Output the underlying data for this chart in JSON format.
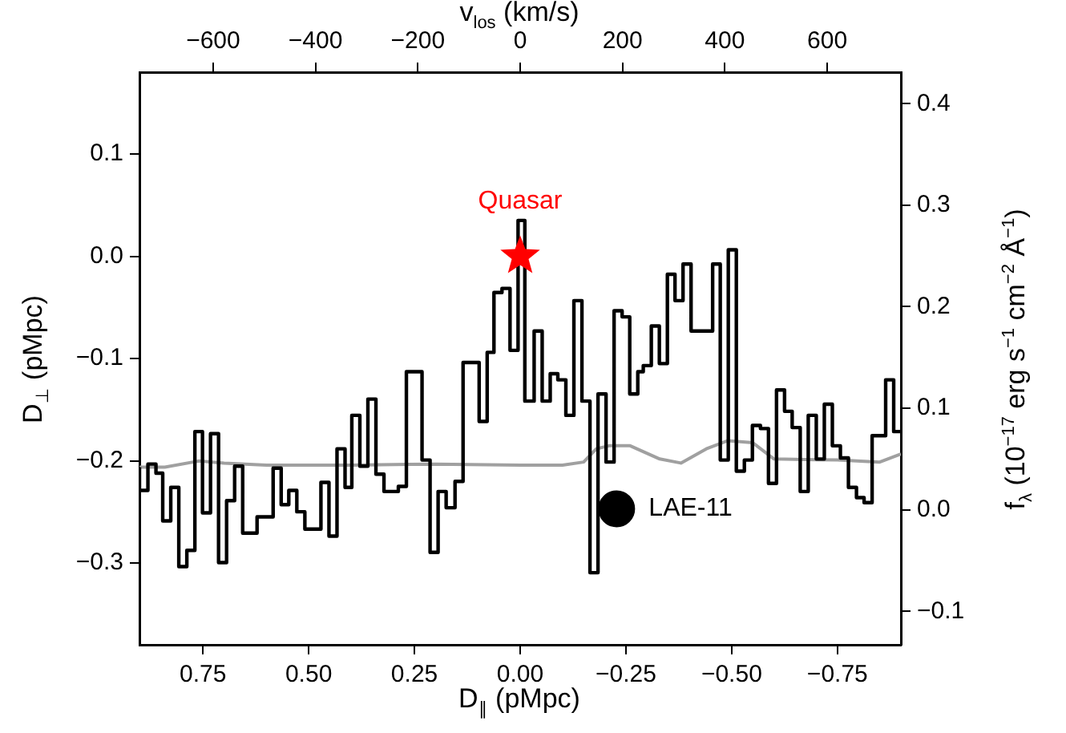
{
  "chart_data": {
    "type": "step",
    "xlabel": "D$_{∥}$ (pMpc)",
    "x2label": "v$_{los}$ (km/s)",
    "ylabel": "D$_{⊥}$ (pMpc)",
    "y2label": "f$_{λ}$ (10$^{−17}$ erg s$^{−1}$ cm$^{−2}$ Å$^{−1}$)",
    "xlim": [
      0.9,
      -0.9
    ],
    "xticks": [
      {
        "value": 0.75,
        "label": "0.75"
      },
      {
        "value": 0.5,
        "label": "0.50"
      },
      {
        "value": 0.25,
        "label": "0.25"
      },
      {
        "value": 0,
        "label": "0.00"
      },
      {
        "value": -0.25,
        "label": "−0.25"
      },
      {
        "value": -0.5,
        "label": "−0.50"
      },
      {
        "value": -0.75,
        "label": "−0.75"
      }
    ],
    "x2lim": [
      -744,
      744
    ],
    "x2ticks": [
      {
        "value": -600,
        "label": "−600"
      },
      {
        "value": -400,
        "label": "−400"
      },
      {
        "value": -200,
        "label": "−200"
      },
      0,
      200,
      400,
      600
    ],
    "ylim": [
      -0.38,
      0.18
    ],
    "yticks": [
      {
        "value": -0.3,
        "label": "−0.3"
      },
      {
        "value": -0.2,
        "label": "−0.2"
      },
      {
        "value": -0.1,
        "label": "−0.1"
      },
      {
        "value": 0,
        "label": "0.0"
      },
      0.1
    ],
    "y2lim": [
      -0.133,
      0.431
    ],
    "y2ticks": [
      {
        "value": -0.1,
        "label": "−0.1"
      },
      {
        "value": 0,
        "label": "0.0"
      },
      0.1,
      0.2,
      0.3,
      0.4
    ],
    "grid": false,
    "legend": false,
    "series": [
      {
        "axis": "y2",
        "color": "#000000",
        "x": [
          0.9,
          0.88,
          0.861,
          0.845,
          0.826,
          0.807,
          0.788,
          0.769,
          0.751,
          0.732,
          0.713,
          0.694,
          0.675,
          0.656,
          0.622,
          0.584,
          0.565,
          0.547,
          0.528,
          0.509,
          0.471,
          0.452,
          0.433,
          0.414,
          0.398,
          0.379,
          0.36,
          0.341,
          0.322,
          0.288,
          0.269,
          0.232,
          0.213,
          0.194,
          0.175,
          0.154,
          0.135,
          0.097,
          0.078,
          0.062,
          0.043,
          0.024,
          0.005,
          -0.011,
          -0.033,
          -0.052,
          -0.071,
          -0.089,
          -0.108,
          -0.127,
          -0.146,
          -0.165,
          -0.184,
          -0.203,
          -0.222,
          -0.241,
          -0.259,
          -0.278,
          -0.291,
          -0.31,
          -0.329,
          -0.348,
          -0.366,
          -0.385,
          -0.404,
          -0.455,
          -0.473,
          -0.492,
          -0.511,
          -0.53,
          -0.549,
          -0.568,
          -0.587,
          -0.606,
          -0.625,
          -0.643,
          -0.662,
          -0.681,
          -0.7,
          -0.719,
          -0.738,
          -0.757,
          -0.776,
          -0.795,
          -0.813,
          -0.832,
          -0.864,
          -0.883,
          -0.895,
          -0.9
        ],
        "values": [
          0.042,
          0.019,
          0.045,
          0.036,
          -0.011,
          0.022,
          -0.056,
          -0.04,
          0.077,
          -0.003,
          0.075,
          -0.052,
          0.009,
          0.043,
          -0.023,
          -0.007,
          0.041,
          0.005,
          0.019,
          -0.002,
          -0.019,
          0.027,
          -0.026,
          0.06,
          0.022,
          0.093,
          0.043,
          0.109,
          0.035,
          0.018,
          0.023,
          0.136,
          0.049,
          -0.042,
          0.018,
          0.002,
          0.028,
          0.145,
          0.087,
          0.155,
          0.214,
          0.218,
          0.157,
          0.285,
          0.107,
          0.176,
          0.107,
          0.134,
          0.128,
          0.093,
          0.206,
          0.107,
          -0.062,
          0.114,
          0.047,
          0.196,
          0.19,
          0.114,
          0.136,
          0.142,
          0.181,
          0.144,
          0.232,
          0.206,
          0.242,
          0.176,
          0.242,
          0.049,
          0.256,
          0.038,
          0.049,
          0.083,
          0.08,
          0.026,
          0.118,
          0.097,
          0.081,
          0.018,
          0.093,
          0.05,
          0.104,
          0.063,
          0.051,
          0.022,
          0.012,
          0.007,
          0.073,
          0.128,
          0.077,
          0.077
        ]
      },
      {
        "type": "line",
        "axis": "y2",
        "color": "#a0a0a0",
        "x": [
          0.9,
          0.84,
          0.76,
          0.7,
          0.6,
          0.4,
          0.2,
          0.0,
          -0.1,
          -0.15,
          -0.18,
          -0.21,
          -0.26,
          -0.33,
          -0.38,
          -0.44,
          -0.49,
          -0.55,
          -0.6,
          -0.75,
          -0.85,
          -0.9
        ],
        "values": [
          0.042,
          0.042,
          0.048,
          0.046,
          0.044,
          0.044,
          0.045,
          0.044,
          0.044,
          0.047,
          0.06,
          0.063,
          0.063,
          0.05,
          0.046,
          0.06,
          0.068,
          0.066,
          0.05,
          0.049,
          0.047,
          0.055
        ]
      },
      {
        "type": "scatter",
        "axis": "y",
        "name": "Quasar",
        "color": "#ff0000",
        "marker": "star",
        "x": [
          0.0
        ],
        "values": [
          0.0
        ]
      },
      {
        "type": "scatter",
        "axis": "y",
        "name": "LAE-11",
        "color": "#000000",
        "marker": "circle",
        "x": [
          -0.228
        ],
        "values": [
          -0.247
        ]
      }
    ]
  }
}
